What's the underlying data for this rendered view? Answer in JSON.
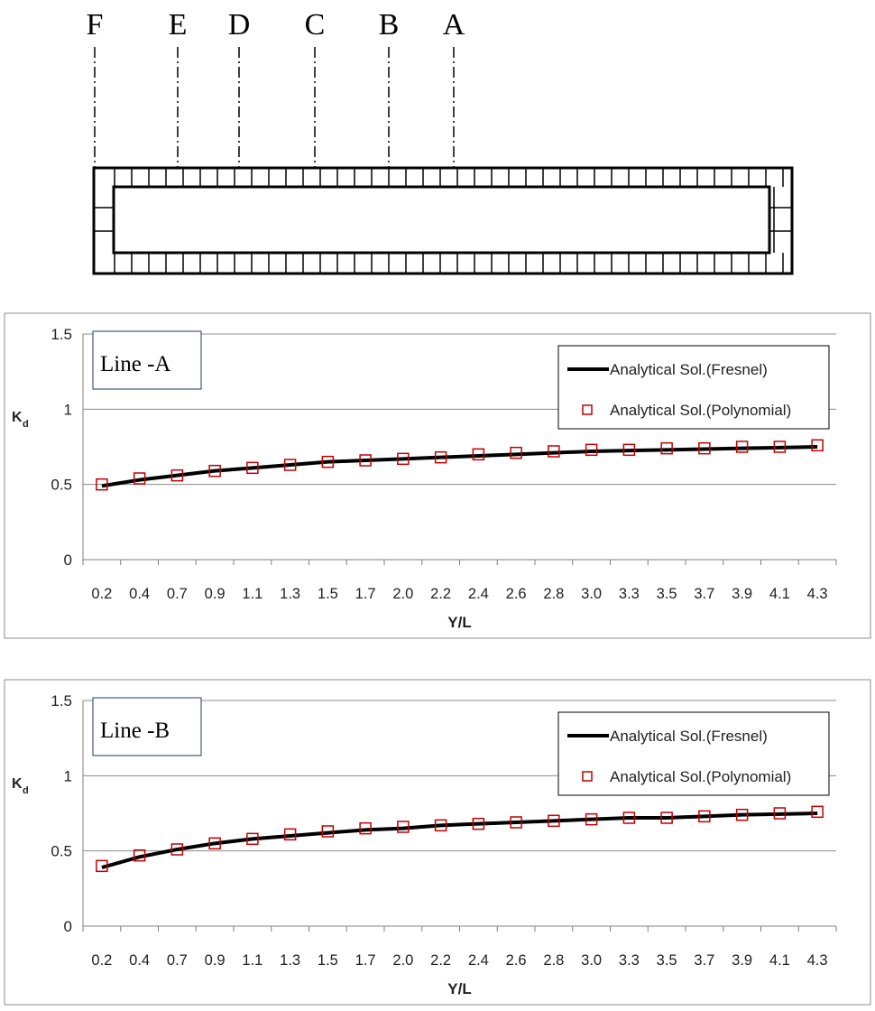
{
  "diagram": {
    "line_labels": [
      "F",
      "E",
      "D",
      "C",
      "B",
      "A"
    ]
  },
  "colors": {
    "line": "#000000",
    "marker": "#c00000",
    "grid": "#8c8c8c",
    "frame": "#8c8c8c"
  },
  "chart_data": [
    {
      "type": "line",
      "inset_label": "Line -A",
      "xlabel": "Y/L",
      "ylabel": "K",
      "ylabel_sub": "d",
      "categories": [
        "0.2",
        "0.4",
        "0.7",
        "0.9",
        "1.1",
        "1.3",
        "1.5",
        "1.7",
        "2.0",
        "2.2",
        "2.4",
        "2.6",
        "2.8",
        "3.0",
        "3.3",
        "3.5",
        "3.7",
        "3.9",
        "4.1",
        "4.3"
      ],
      "ylim": [
        0,
        1.5
      ],
      "yticks": [
        "0",
        "0.5",
        "1",
        "1.5"
      ],
      "grid": true,
      "legend_position": "top-right",
      "series": [
        {
          "name": "Analytical Sol.(Fresnel)",
          "style": "line",
          "values": [
            0.49,
            0.53,
            0.56,
            0.59,
            0.61,
            0.63,
            0.65,
            0.66,
            0.67,
            0.68,
            0.69,
            0.7,
            0.71,
            0.72,
            0.725,
            0.73,
            0.735,
            0.74,
            0.745,
            0.75
          ]
        },
        {
          "name": "Analytical Sol.(Polynomial)",
          "style": "marker",
          "values": [
            0.5,
            0.54,
            0.56,
            0.59,
            0.61,
            0.63,
            0.65,
            0.66,
            0.67,
            0.68,
            0.7,
            0.71,
            0.72,
            0.73,
            0.73,
            0.74,
            0.74,
            0.75,
            0.75,
            0.76
          ]
        }
      ]
    },
    {
      "type": "line",
      "inset_label": "Line -B",
      "xlabel": "Y/L",
      "ylabel": "K",
      "ylabel_sub": "d",
      "categories": [
        "0.2",
        "0.4",
        "0.7",
        "0.9",
        "1.1",
        "1.3",
        "1.5",
        "1.7",
        "2.0",
        "2.2",
        "2.4",
        "2.6",
        "2.8",
        "3.0",
        "3.3",
        "3.5",
        "3.7",
        "3.9",
        "4.1",
        "4.3"
      ],
      "ylim": [
        0,
        1.5
      ],
      "yticks": [
        "0",
        "0.5",
        "1",
        "1.5"
      ],
      "grid": true,
      "legend_position": "top-right",
      "series": [
        {
          "name": "Analytical Sol.(Fresnel)",
          "style": "line",
          "values": [
            0.39,
            0.46,
            0.51,
            0.55,
            0.58,
            0.6,
            0.62,
            0.64,
            0.65,
            0.67,
            0.68,
            0.69,
            0.7,
            0.71,
            0.72,
            0.72,
            0.73,
            0.74,
            0.745,
            0.75
          ]
        },
        {
          "name": "Analytical Sol.(Polynomial)",
          "style": "marker",
          "values": [
            0.4,
            0.47,
            0.51,
            0.55,
            0.58,
            0.61,
            0.63,
            0.65,
            0.66,
            0.67,
            0.68,
            0.69,
            0.7,
            0.71,
            0.72,
            0.72,
            0.73,
            0.74,
            0.75,
            0.76
          ]
        }
      ]
    }
  ]
}
